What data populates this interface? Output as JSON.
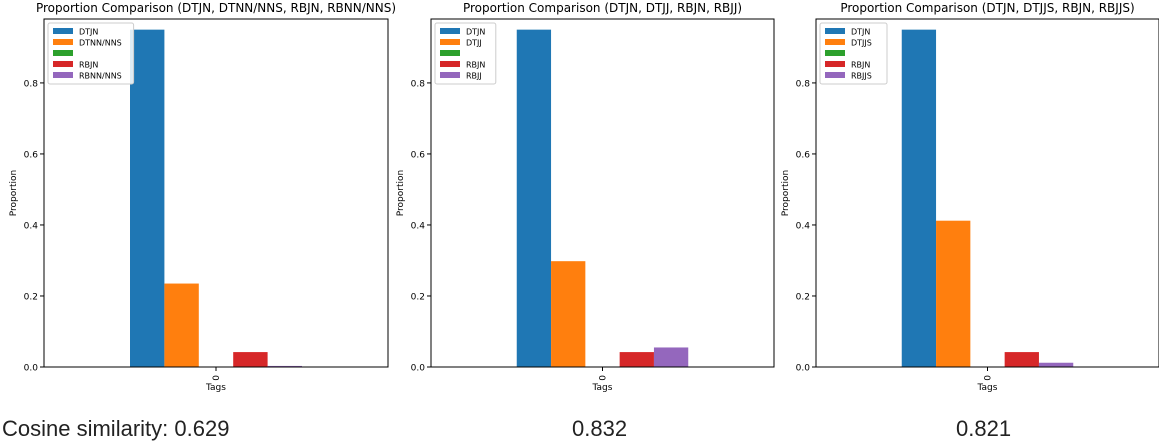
{
  "chart_data": [
    {
      "type": "bar",
      "title": "Proportion Comparison (DTJN, DTNN/NNS, RBJN, RBNN/NNS)",
      "xlabel": "Tags",
      "ylabel": "Proportion",
      "categories": [
        "0"
      ],
      "ylim": [
        0,
        0.98
      ],
      "yticks": [
        "0.0",
        "0.2",
        "0.4",
        "0.6",
        "0.8"
      ],
      "legend_position": "top-left",
      "series": [
        {
          "name": "DTJN",
          "values": [
            0.95
          ],
          "color": "#1f77b4"
        },
        {
          "name": "DTNN/NNS",
          "values": [
            0.235
          ],
          "color": "#ff7f0e"
        },
        {
          "name": "",
          "values": [
            0.0
          ],
          "color": "#2ca02c"
        },
        {
          "name": "RBJN",
          "values": [
            0.042
          ],
          "color": "#d62728"
        },
        {
          "name": "RBNN/NNS",
          "values": [
            0.003
          ],
          "color": "#9467bd"
        }
      ]
    },
    {
      "type": "bar",
      "title": "Proportion Comparison (DTJN, DTJJ, RBJN, RBJJ)",
      "xlabel": "Tags",
      "ylabel": "Proportion",
      "categories": [
        "0"
      ],
      "ylim": [
        0,
        0.98
      ],
      "yticks": [
        "0.0",
        "0.2",
        "0.4",
        "0.6",
        "0.8"
      ],
      "legend_position": "top-left",
      "series": [
        {
          "name": "DTJN",
          "values": [
            0.95
          ],
          "color": "#1f77b4"
        },
        {
          "name": "DTJJ",
          "values": [
            0.298
          ],
          "color": "#ff7f0e"
        },
        {
          "name": "",
          "values": [
            0.0
          ],
          "color": "#2ca02c"
        },
        {
          "name": "RBJN",
          "values": [
            0.042
          ],
          "color": "#d62728"
        },
        {
          "name": "RBJJ",
          "values": [
            0.055
          ],
          "color": "#9467bd"
        }
      ]
    },
    {
      "type": "bar",
      "title": "Proportion Comparison (DTJN, DTJJS, RBJN, RBJJS)",
      "xlabel": "Tags",
      "ylabel": "Proportion",
      "categories": [
        "0"
      ],
      "ylim": [
        0,
        0.98
      ],
      "yticks": [
        "0.0",
        "0.2",
        "0.4",
        "0.6",
        "0.8"
      ],
      "legend_position": "top-left",
      "series": [
        {
          "name": "DTJN",
          "values": [
            0.95
          ],
          "color": "#1f77b4"
        },
        {
          "name": "DTJJS",
          "values": [
            0.412
          ],
          "color": "#ff7f0e"
        },
        {
          "name": "",
          "values": [
            0.0
          ],
          "color": "#2ca02c"
        },
        {
          "name": "RBJN",
          "values": [
            0.042
          ],
          "color": "#d62728"
        },
        {
          "name": "RBJJS",
          "values": [
            0.012
          ],
          "color": "#9467bd"
        }
      ]
    }
  ],
  "captions": [
    "Cosine similarity: 0.629",
    "0.832",
    "0.821"
  ]
}
